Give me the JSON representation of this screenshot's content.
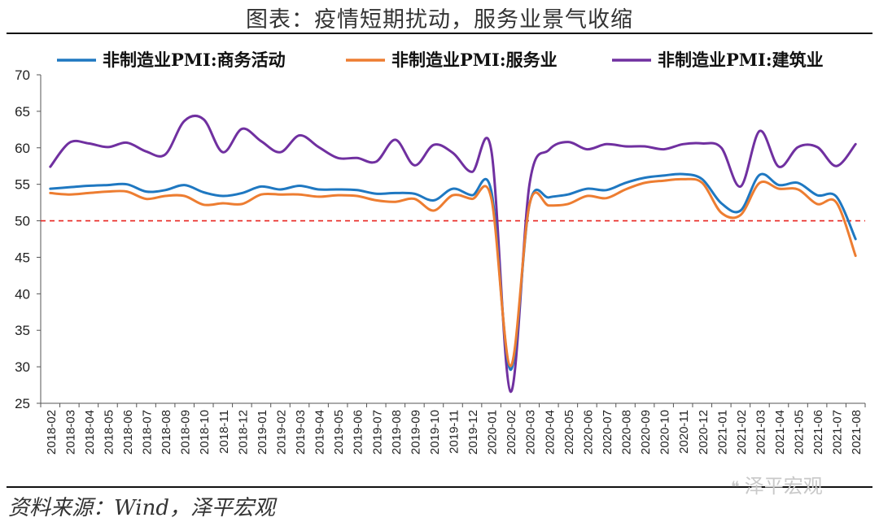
{
  "header": {
    "title": "图表：疫情短期扰动，服务业景气收缩"
  },
  "footer": {
    "source": "资料来源：Wind，泽平宏观",
    "watermark": "泽平宏观"
  },
  "colors": {
    "business": "#1f78c1",
    "services": "#ed7d31",
    "construction": "#7030a0",
    "refline": "#e8231f"
  },
  "chart_data": {
    "type": "line",
    "title": "",
    "xlabel": "",
    "ylabel": "",
    "ylim": [
      25,
      70
    ],
    "yticks": [
      25,
      30,
      35,
      40,
      45,
      50,
      55,
      60,
      65,
      70
    ],
    "grid": false,
    "legend_position": "top",
    "reference_line": {
      "y": 50,
      "style": "dashed",
      "color": "#e8231f"
    },
    "x": [
      "2018-02",
      "2018-03",
      "2018-04",
      "2018-05",
      "2018-06",
      "2018-07",
      "2018-08",
      "2018-09",
      "2018-10",
      "2018-11",
      "2018-12",
      "2019-01",
      "2019-02",
      "2019-03",
      "2019-04",
      "2019-05",
      "2019-06",
      "2019-07",
      "2019-08",
      "2019-09",
      "2019-10",
      "2019-11",
      "2019-12",
      "2020-01",
      "2020-02",
      "2020-03",
      "2020-04",
      "2020-05",
      "2020-06",
      "2020-07",
      "2020-08",
      "2020-09",
      "2020-10",
      "2020-11",
      "2020-12",
      "2021-01",
      "2021-02",
      "2021-03",
      "2021-04",
      "2021-05",
      "2021-06",
      "2021-07",
      "2021-08"
    ],
    "series": [
      {
        "name": "非制造业PMI:商务活动",
        "color": "#1f78c1",
        "values": [
          54.4,
          54.6,
          54.8,
          54.9,
          55.0,
          54.0,
          54.2,
          54.9,
          53.9,
          53.4,
          53.8,
          54.7,
          54.3,
          54.8,
          54.3,
          54.3,
          54.2,
          53.7,
          53.8,
          53.7,
          52.8,
          54.4,
          53.5,
          54.1,
          29.6,
          52.3,
          53.2,
          53.6,
          54.4,
          54.2,
          55.2,
          55.9,
          56.2,
          56.4,
          55.7,
          52.4,
          51.4,
          56.3,
          54.9,
          55.2,
          53.5,
          53.3,
          47.5
        ]
      },
      {
        "name": "非制造业PMI:服务业",
        "color": "#ed7d31",
        "values": [
          53.8,
          53.6,
          53.8,
          54.0,
          54.0,
          53.0,
          53.4,
          53.4,
          52.2,
          52.4,
          52.3,
          53.6,
          53.6,
          53.6,
          53.3,
          53.5,
          53.4,
          52.8,
          52.6,
          53.0,
          51.4,
          53.5,
          53.0,
          53.1,
          30.1,
          52.3,
          52.1,
          52.3,
          53.4,
          53.1,
          54.3,
          55.2,
          55.5,
          55.7,
          55.2,
          51.1,
          50.8,
          55.2,
          54.4,
          54.3,
          52.3,
          52.5,
          45.2
        ]
      },
      {
        "name": "非制造业PMI:建筑业",
        "color": "#7030a0",
        "values": [
          57.4,
          60.7,
          60.6,
          60.1,
          60.7,
          59.5,
          59.1,
          63.7,
          63.9,
          59.4,
          62.6,
          60.9,
          59.4,
          61.7,
          60.1,
          58.6,
          58.6,
          58.1,
          61.1,
          57.6,
          60.4,
          59.3,
          56.7,
          59.7,
          26.6,
          55.1,
          59.7,
          60.8,
          59.8,
          60.5,
          60.2,
          60.2,
          59.8,
          60.5,
          60.6,
          60.0,
          54.7,
          62.3,
          57.4,
          60.1,
          60.1,
          57.5,
          60.5
        ]
      }
    ]
  }
}
